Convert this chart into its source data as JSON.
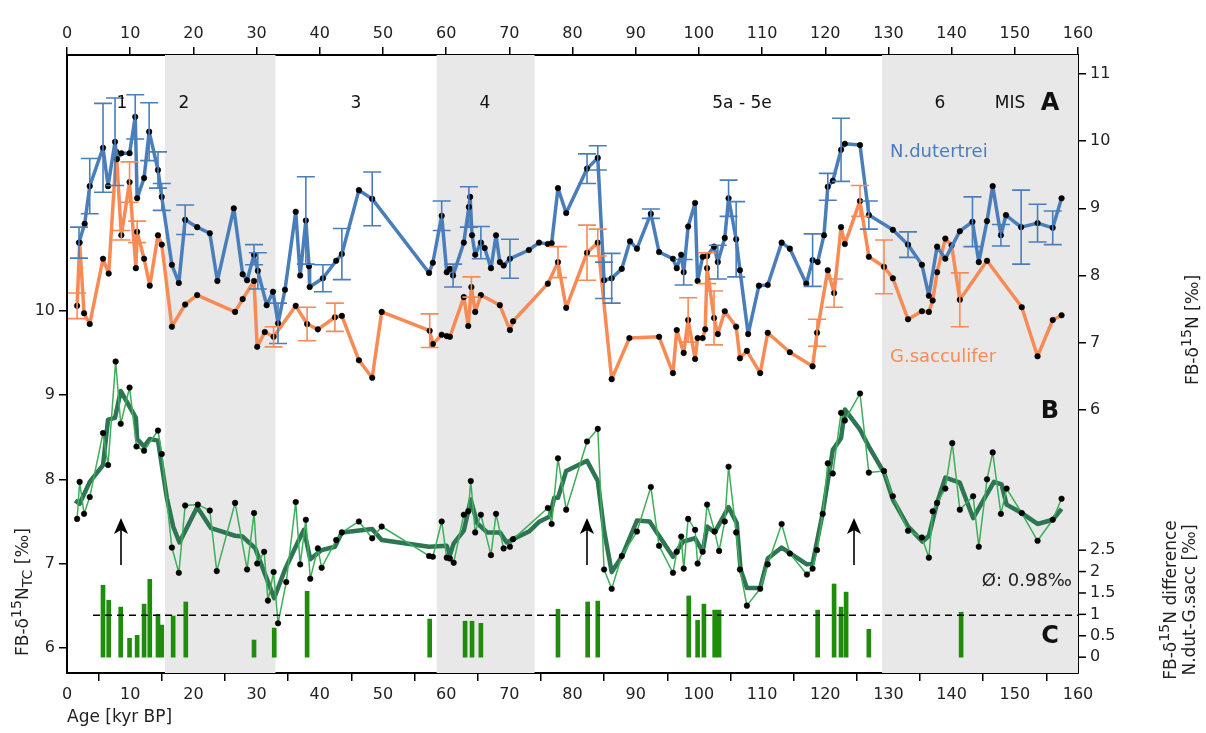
{
  "chart_data": {
    "type": "line",
    "xlabel": "Age [kyr BP]",
    "ylabel": "FB-δ$^{15}$N$_{TC}$ [‰]",
    "y2label": "FB-δ$^{15}$N [‰]",
    "y3label": "FB-δ$^{15}$N difference N.dut-G.sacc [‰]",
    "annotations": [
      "1",
      "2",
      "3",
      "4",
      "5a - 5e",
      "6",
      "MIS",
      "A",
      "B",
      "C"
    ],
    "xlim": [
      0,
      160
    ],
    "xticks": [
      0,
      10,
      20,
      30,
      40,
      50,
      60,
      70,
      80,
      90,
      100,
      110,
      120,
      130,
      140,
      150,
      160
    ],
    "x2lim": [
      0,
      160
    ],
    "x2ticks": [
      0,
      10,
      20,
      30,
      40,
      50,
      60,
      70,
      80,
      90,
      100,
      110,
      120,
      130,
      140,
      150,
      160
    ],
    "ylim": [
      5.7,
      13.04
    ],
    "yticks": [
      6,
      7,
      8,
      9,
      10
    ],
    "y2lim": [
      2.09,
      11.28
    ],
    "y2ticks": [
      6,
      7,
      8,
      9,
      10,
      11
    ],
    "y3lim": [
      -0.37,
      14.07
    ],
    "y3ticks": [
      0,
      0.5,
      1,
      1.5,
      2,
      2.5
    ],
    "grid": false,
    "legend": false,
    "bands": [
      {
        "axis": "x",
        "from": 15.5,
        "to": 33,
        "color": "#e8e8e8"
      },
      {
        "axis": "x",
        "from": 58.5,
        "to": 74,
        "color": "#e8e8e8"
      },
      {
        "axis": "x",
        "from": 129,
        "to": 160,
        "color": "#e8e8e8"
      }
    ],
    "ref_lines": [
      {
        "axis": "y3",
        "value": 0.98,
        "label": "Ø: 0.98‰",
        "line_style": "dashed",
        "color": "#000000"
      }
    ],
    "series": [
      {
        "name": "N.dutertrei",
        "type": "line",
        "axis": "y2",
        "color": "#4a7ebb",
        "marker": "circle",
        "x": [
          1.9,
          2.8,
          3.6,
          5.7,
          6.5,
          7.6,
          7.9,
          8.6,
          9.9,
          10.8,
          11.1,
          12.2,
          13.0,
          14.4,
          15.0,
          16.6,
          17.7,
          18.7,
          20.6,
          22.6,
          23.8,
          26.4,
          27.8,
          28.5,
          29.6,
          30.2,
          31.6,
          32.6,
          33.4,
          34.5,
          36.2,
          36.9,
          37.8,
          38.3,
          38.4,
          40.5,
          42.6,
          43.5,
          46.2,
          48.3,
          57.3,
          57.9,
          59.3,
          60.1,
          60.6,
          61.1,
          62.8,
          63.6,
          63.8,
          64.1,
          64.6,
          65.5,
          66.1,
          67.1,
          67.9,
          68.5,
          69.1,
          70.1,
          73.1,
          74.7,
          76.1,
          76.7,
          77.7,
          79.0,
          82.3,
          84.0,
          85.0,
          86.2,
          87.8,
          89.1,
          90.2,
          92.4,
          93.7,
          95.9,
          96.5,
          97.2,
          97.6,
          98.3,
          99.4,
          99.8,
          100.6,
          101.3,
          102.4,
          103.0,
          104.1,
          104.7,
          105.9,
          106.5,
          107.8,
          109.5,
          110.9,
          113.1,
          114.4,
          117.0,
          118.0,
          118.8,
          119.8,
          120.4,
          121.2,
          122.5,
          123.1,
          125.5,
          126.9,
          130.7,
          133.1,
          135.3,
          136.4,
          137.7,
          139.0,
          141.3,
          143.3,
          144.3,
          145.6,
          146.5,
          147.8,
          148.6,
          151.0,
          153.6,
          156.0,
          157.4
        ],
        "values": [
          8.49,
          8.77,
          9.33,
          9.9,
          9.33,
          9.99,
          9.73,
          9.82,
          9.82,
          10.36,
          9.15,
          9.45,
          10.14,
          9.57,
          9.17,
          8.16,
          7.89,
          8.83,
          8.72,
          8.63,
          7.92,
          9.0,
          8.02,
          7.93,
          8.31,
          8.07,
          7.56,
          7.76,
          7.29,
          7.79,
          8.95,
          8.0,
          8.82,
          8.14,
          7.83,
          7.96,
          8.22,
          8.32,
          9.27,
          9.14,
          8.04,
          8.19,
          8.89,
          8.05,
          8.1,
          8.0,
          8.49,
          9.02,
          9.17,
          8.6,
          8.31,
          8.49,
          8.41,
          8.11,
          8.6,
          8.2,
          8.15,
          8.25,
          8.38,
          8.49,
          8.47,
          8.48,
          9.3,
          8.93,
          9.59,
          9.75,
          7.93,
          7.96,
          8.1,
          8.51,
          8.4,
          8.92,
          8.35,
          8.25,
          8.11,
          8.31,
          8.05,
          8.73,
          9.08,
          7.92,
          8.28,
          8.29,
          8.43,
          8.2,
          8.56,
          9.15,
          8.54,
          8.08,
          7.13,
          7.85,
          7.86,
          8.49,
          8.4,
          7.88,
          8.23,
          8.2,
          8.6,
          9.32,
          9.41,
          9.87,
          9.96,
          9.94,
          8.9,
          8.68,
          8.46,
          8.16,
          7.7,
          8.43,
          8.25,
          8.66,
          8.8,
          8.2,
          8.81,
          9.33,
          8.6,
          8.9,
          8.72,
          8.78,
          8.71,
          9.15
        ],
        "errors": [
          0.23,
          null,
          0.41,
          0.66,
          null,
          0.65,
          null,
          null,
          null,
          0.33,
          null,
          null,
          0.43,
          0.27,
          0.2,
          null,
          null,
          0.22,
          null,
          null,
          null,
          null,
          null,
          null,
          0.15,
          0.27,
          null,
          null,
          0.3,
          null,
          null,
          null,
          0.65,
          null,
          null,
          0.2,
          null,
          0.38,
          null,
          0.4,
          null,
          null,
          0.22,
          null,
          null,
          0.17,
          null,
          0.3,
          null,
          null,
          null,
          0.24,
          null,
          null,
          null,
          null,
          null,
          0.29,
          null,
          null,
          null,
          null,
          null,
          null,
          0.22,
          0.18,
          0.27,
          0.37,
          null,
          null,
          null,
          0.07,
          null,
          null,
          null,
          null,
          0.19,
          null,
          null,
          null,
          null,
          null,
          null,
          0.25,
          null,
          0.27,
          0.56,
          null,
          null,
          null,
          null,
          null,
          null,
          null,
          0.39,
          null,
          null,
          0.2,
          null,
          0.47,
          null,
          null,
          0.21,
          null,
          0.19,
          null,
          null,
          null,
          null,
          null,
          0.37,
          null,
          null,
          null,
          0.16,
          null,
          0.55,
          0.28,
          0.25,
          null
        ]
      },
      {
        "name": "G.sacculifer",
        "type": "line",
        "axis": "y2",
        "color": "#f88b55",
        "marker": "circle",
        "x": [
          1.6,
          2.0,
          2.7,
          3.6,
          5.7,
          6.6,
          7.8,
          8.6,
          9.9,
          10.9,
          11.1,
          12.2,
          13.1,
          14.4,
          15.0,
          16.6,
          18.7,
          20.6,
          26.6,
          27.8,
          29.6,
          30.1,
          31.3,
          32.7,
          36.2,
          38.0,
          39.7,
          42.4,
          43.5,
          46.2,
          48.3,
          49.8,
          57.4,
          57.9,
          59.3,
          60.1,
          60.6,
          62.8,
          63.5,
          64.0,
          64.6,
          65.5,
          68.5,
          70.1,
          70.6,
          76.1,
          77.7,
          79.0,
          82.3,
          84.0,
          86.2,
          89.0,
          93.7,
          95.9,
          96.5,
          97.6,
          98.3,
          99.4,
          99.8,
          100.6,
          101.0,
          101.3,
          102.4,
          103.0,
          104.1,
          105.9,
          106.5,
          107.6,
          109.7,
          110.9,
          114.4,
          118.0,
          118.7,
          120.4,
          121.4,
          122.5,
          123.1,
          125.5,
          126.9,
          129.3,
          130.7,
          133.1,
          135.3,
          136.4,
          137.0,
          137.7,
          139.0,
          140.0,
          141.3,
          145.6,
          151.1,
          153.6,
          156.0,
          157.4
        ],
        "values": [
          7.55,
          8.49,
          7.44,
          7.28,
          8.25,
          8.03,
          9.84,
          8.6,
          9.39,
          8.11,
          8.65,
          8.25,
          7.85,
          8.6,
          8.46,
          7.24,
          7.57,
          7.71,
          7.46,
          7.65,
          7.92,
          6.94,
          7.16,
          7.09,
          7.55,
          7.28,
          7.2,
          7.38,
          7.4,
          6.74,
          6.48,
          7.46,
          7.18,
          6.98,
          7.12,
          7.1,
          7.09,
          7.68,
          7.25,
          7.83,
          7.46,
          7.71,
          7.56,
          7.19,
          7.32,
          7.88,
          8.2,
          7.52,
          8.34,
          8.49,
          6.46,
          7.07,
          7.09,
          6.55,
          7.19,
          6.85,
          7.34,
          6.76,
          7.07,
          7.07,
          7.2,
          8.11,
          7.37,
          7.13,
          7.47,
          7.24,
          6.77,
          6.88,
          6.55,
          7.15,
          6.86,
          6.65,
          7.15,
          8.08,
          7.74,
          8.72,
          8.47,
          9.11,
          8.28,
          8.13,
          7.96,
          7.35,
          7.47,
          7.46,
          7.63,
          8.05,
          8.55,
          8.45,
          7.64,
          8.22,
          7.53,
          6.8,
          7.34,
          7.41
        ],
        "errors": [
          0.19,
          null,
          null,
          null,
          null,
          null,
          null,
          0.07,
          0.3,
          null,
          0.16,
          null,
          null,
          null,
          null,
          null,
          null,
          null,
          null,
          null,
          null,
          null,
          null,
          0.15,
          null,
          0.25,
          null,
          0.21,
          null,
          null,
          null,
          null,
          0.25,
          null,
          null,
          null,
          null,
          null,
          null,
          0.15,
          null,
          null,
          null,
          null,
          null,
          null,
          0.23,
          null,
          0.41,
          0.2,
          null,
          null,
          null,
          null,
          null,
          null,
          0.33,
          null,
          null,
          null,
          null,
          0.23,
          0.4,
          null,
          null,
          null,
          null,
          null,
          null,
          null,
          null,
          null,
          0.2,
          null,
          0.21,
          null,
          null,
          0.23,
          null,
          0.4,
          null,
          null,
          null,
          null,
          null,
          null,
          null,
          null,
          0.4,
          null,
          null,
          null,
          null,
          null
        ]
      },
      {
        "type": "line",
        "axis": "y",
        "color": "#3fae5a",
        "marker": "circle",
        "x": [
          1.6,
          2.0,
          2.7,
          3.6,
          5.7,
          6.5,
          7.7,
          8.5,
          9.9,
          11.0,
          12.2,
          14.4,
          15.0,
          16.6,
          17.7,
          18.7,
          20.7,
          22.6,
          23.7,
          26.6,
          28.5,
          29.6,
          30.1,
          31.2,
          31.8,
          32.7,
          33.4,
          34.7,
          36.2,
          36.9,
          37.8,
          38.5,
          39.7,
          40.3,
          42.6,
          43.5,
          46.2,
          48.3,
          49.8,
          57.3,
          57.9,
          59.3,
          60.1,
          60.6,
          61.2,
          62.8,
          63.5,
          63.9,
          64.6,
          65.5,
          67.1,
          67.9,
          69.1,
          70.1,
          70.6,
          76.1,
          76.7,
          77.7,
          79.0,
          82.3,
          84.0,
          85.0,
          86.2,
          87.8,
          90.2,
          92.4,
          93.7,
          95.9,
          96.5,
          97.2,
          97.6,
          98.3,
          99.4,
          99.8,
          100.6,
          101.3,
          102.5,
          103.2,
          104.1,
          104.7,
          105.9,
          106.5,
          107.6,
          109.7,
          110.9,
          113.1,
          114.4,
          117.1,
          118.0,
          118.7,
          119.6,
          120.4,
          121.2,
          122.5,
          123.1,
          125.5,
          126.9,
          129.3,
          130.7,
          133.1,
          135.3,
          136.4,
          137.0,
          137.7,
          139.0,
          140.1,
          141.3,
          143.4,
          144.3,
          145.6,
          146.5,
          147.8,
          148.7,
          151.1,
          153.6,
          156.0,
          157.4
        ],
        "values": [
          7.53,
          7.97,
          7.59,
          7.79,
          8.55,
          8.17,
          9.4,
          8.66,
          9.09,
          8.39,
          8.34,
          8.58,
          8.3,
          7.19,
          6.89,
          7.69,
          7.7,
          7.63,
          6.91,
          7.72,
          6.93,
          7.6,
          7.0,
          7.14,
          6.56,
          6.9,
          6.29,
          6.78,
          7.73,
          6.99,
          7.52,
          6.82,
          7.18,
          6.95,
          7.28,
          7.37,
          7.5,
          7.3,
          7.44,
          7.09,
          7.08,
          7.5,
          7.07,
          7.06,
          7.01,
          7.58,
          7.62,
          7.98,
          7.37,
          7.58,
          7.1,
          7.59,
          7.18,
          7.2,
          7.29,
          7.66,
          7.47,
          8.25,
          7.64,
          8.45,
          8.6,
          6.93,
          6.7,
          7.09,
          7.38,
          7.91,
          7.21,
          6.89,
          7.14,
          7.32,
          6.94,
          7.53,
          7.4,
          7.0,
          7.14,
          7.7,
          7.38,
          7.15,
          7.5,
          8.15,
          7.37,
          6.93,
          6.5,
          6.7,
          6.99,
          7.47,
          7.12,
          6.87,
          6.94,
          7.16,
          7.59,
          8.19,
          8.07,
          8.79,
          8.7,
          9.02,
          8.08,
          8.1,
          7.8,
          7.39,
          7.31,
          7.07,
          7.62,
          7.72,
          7.89,
          8.43,
          7.64,
          7.8,
          7.2,
          8.0,
          8.32,
          7.59,
          7.89,
          7.6,
          7.27,
          7.52,
          7.77
        ]
      },
      {
        "type": "line",
        "axis": "y",
        "color": "#2e7553",
        "marker": "none",
        "x": [
          1.3,
          2.0,
          3.6,
          5.7,
          6.5,
          7.6,
          8.5,
          10.9,
          11.1,
          12.2,
          13.1,
          14.4,
          15.8,
          16.8,
          17.8,
          20.6,
          22.8,
          26.6,
          27.8,
          29.8,
          31.2,
          32.8,
          34.5,
          36.7,
          37.5,
          38.5,
          40.3,
          42.4,
          43.5,
          48.3,
          49.8,
          57.3,
          60.1,
          60.6,
          61.2,
          62.8,
          63.9,
          64.9,
          66.5,
          68.5,
          69.6,
          70.6,
          73.1,
          74.8,
          76.4,
          77.1,
          77.7,
          79.0,
          82.3,
          84.0,
          85.0,
          86.2,
          87.8,
          90.2,
          92.2,
          95.9,
          97.5,
          99.4,
          100.6,
          101.3,
          102.5,
          104.7,
          106.0,
          106.6,
          107.6,
          109.7,
          110.9,
          113.1,
          117.1,
          118.0,
          119.6,
          121.2,
          122.5,
          123.1,
          125.5,
          126.9,
          129.3,
          130.7,
          133.1,
          135.4,
          136.4,
          137.7,
          139.0,
          141.3,
          143.4,
          146.7,
          147.9,
          148.7,
          151.1,
          153.6,
          156.0,
          157.4
        ],
        "values": [
          7.75,
          7.71,
          7.97,
          8.17,
          8.71,
          8.73,
          9.05,
          8.73,
          8.48,
          8.39,
          8.48,
          8.46,
          7.78,
          7.44,
          7.25,
          7.67,
          7.42,
          7.33,
          7.32,
          7.18,
          6.9,
          6.59,
          6.93,
          7.28,
          7.4,
          7.05,
          7.16,
          7.2,
          7.37,
          7.41,
          7.28,
          7.2,
          7.21,
          7.1,
          7.24,
          7.39,
          7.76,
          7.48,
          7.37,
          7.37,
          7.25,
          7.29,
          7.38,
          7.5,
          7.56,
          7.78,
          7.78,
          8.1,
          8.22,
          7.98,
          7.39,
          6.9,
          7.08,
          7.51,
          7.5,
          7.08,
          7.26,
          7.3,
          7.14,
          7.44,
          7.37,
          7.67,
          7.48,
          6.93,
          6.71,
          6.71,
          7.06,
          7.19,
          6.99,
          7.0,
          7.6,
          8.35,
          8.49,
          8.83,
          8.59,
          8.39,
          8.08,
          7.76,
          7.44,
          7.26,
          7.33,
          7.72,
          8.02,
          7.96,
          7.54,
          7.97,
          7.94,
          7.7,
          7.6,
          7.47,
          7.52,
          7.65
        ]
      },
      {
        "type": "bar",
        "axis": "y3",
        "color": "#1f8c0c",
        "x": [
          5.7,
          6.6,
          8.5,
          9.9,
          11.1,
          12.2,
          13.1,
          14.4,
          15.0,
          16.8,
          18.8,
          29.6,
          32.8,
          38.0,
          57.4,
          63.0,
          64.1,
          65.5,
          77.7,
          82.4,
          84.0,
          98.4,
          99.8,
          100.8,
          102.5,
          103.2,
          118.8,
          121.4,
          122.5,
          123.3,
          126.9,
          141.5
        ],
        "values": [
          1.68,
          1.33,
          1.17,
          0.44,
          0.51,
          1.24,
          1.82,
          1.0,
          0.75,
          0.96,
          1.29,
          0.4,
          0.68,
          1.54,
          0.89,
          0.84,
          0.84,
          0.79,
          1.12,
          1.29,
          1.31,
          1.43,
          0.86,
          1.24,
          1.1,
          1.1,
          1.1,
          1.71,
          1.17,
          1.52,
          0.65,
          1.05
        ]
      }
    ]
  }
}
